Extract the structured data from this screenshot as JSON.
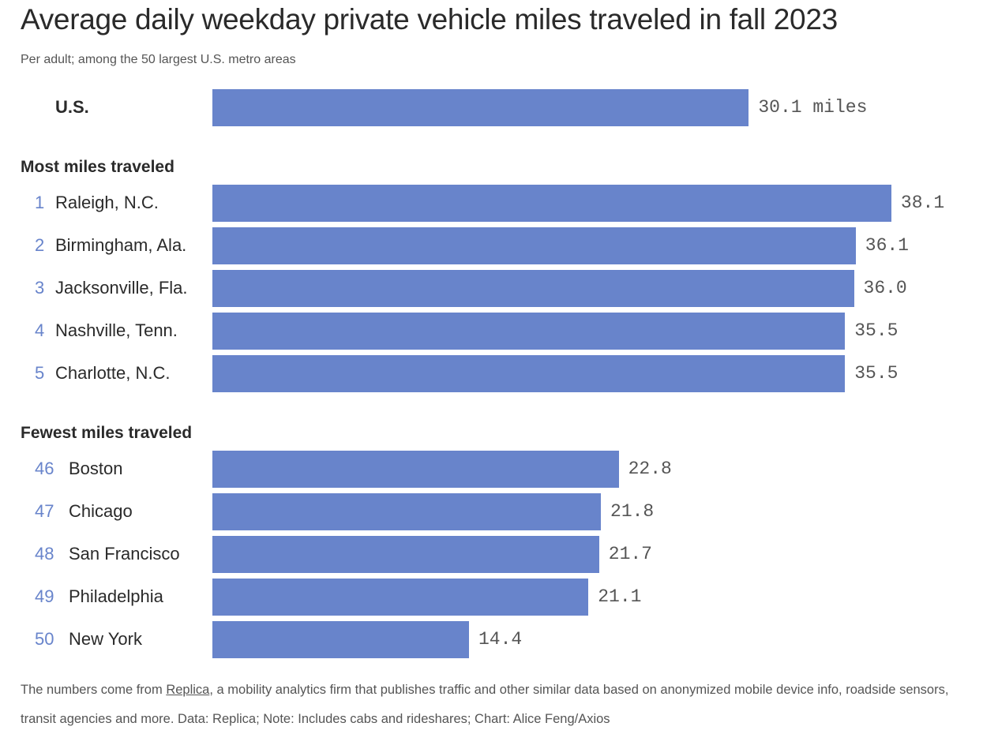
{
  "chart_data": {
    "type": "bar",
    "orientation": "horizontal",
    "title": "Average daily weekday private vehicle miles traveled in fall 2023",
    "subtitle": "Per adult; among the 50 largest U.S. metro areas",
    "bar_color": "#6884cb",
    "unit_suffix": " miles",
    "baseline": {
      "name": "U.S.",
      "value": 30.1,
      "label": "30.1 miles"
    },
    "groups": [
      {
        "title": "Most miles traveled",
        "items": [
          {
            "rank": "1",
            "name": "Raleigh, N.C.",
            "value": 38.1,
            "label": "38.1"
          },
          {
            "rank": "2",
            "name": "Birmingham, Ala.",
            "value": 36.1,
            "label": "36.1"
          },
          {
            "rank": "3",
            "name": "Jacksonville, Fla.",
            "value": 36.0,
            "label": "36.0"
          },
          {
            "rank": "4",
            "name": "Nashville, Tenn.",
            "value": 35.5,
            "label": "35.5"
          },
          {
            "rank": "5",
            "name": "Charlotte, N.C.",
            "value": 35.5,
            "label": "35.5"
          }
        ]
      },
      {
        "title": "Fewest miles traveled",
        "items": [
          {
            "rank": "46",
            "name": "Boston",
            "value": 22.8,
            "label": "22.8"
          },
          {
            "rank": "47",
            "name": "Chicago",
            "value": 21.8,
            "label": "21.8"
          },
          {
            "rank": "48",
            "name": "San Francisco",
            "value": 21.7,
            "label": "21.7"
          },
          {
            "rank": "49",
            "name": "Philadelphia",
            "value": 21.1,
            "label": "21.1"
          },
          {
            "rank": "50",
            "name": "New York",
            "value": 14.4,
            "label": "14.4"
          }
        ]
      }
    ]
  },
  "footer": {
    "pre": "The numbers come from ",
    "link": "Replica",
    "post": ", a mobility analytics firm that publishes traffic and other similar data based on anonymized mobile device info, roadside sensors, transit agencies and more. Data: Replica; Note: Includes cabs and rideshares; Chart: Alice Feng/Axios"
  }
}
